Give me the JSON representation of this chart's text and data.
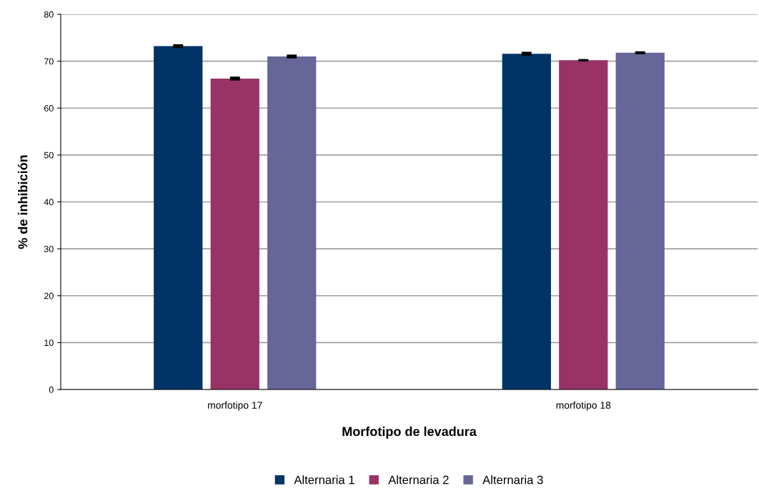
{
  "chart_data": {
    "type": "bar",
    "xlabel": "Morfotipo de levadura",
    "ylabel": "% de inhibición",
    "categories": [
      "morfotipo 17",
      "morfotipo 18"
    ],
    "series": [
      {
        "name": "Alternaria 1",
        "color": "#003366",
        "values": [
          73.2,
          71.6
        ],
        "errors": [
          0.2,
          0.2
        ]
      },
      {
        "name": "Alternaria 2",
        "color": "#993366",
        "values": [
          66.3,
          70.2
        ],
        "errors": [
          0.2,
          0.05
        ]
      },
      {
        "name": "Alternaria 3",
        "color": "#666699",
        "values": [
          71.0,
          71.8
        ],
        "errors": [
          0.2,
          0.1
        ]
      }
    ],
    "ylim": [
      0,
      80
    ],
    "yticks": [
      0,
      10,
      20,
      30,
      40,
      50,
      60,
      70,
      80
    ],
    "grid": "y",
    "legend": "bottom"
  }
}
